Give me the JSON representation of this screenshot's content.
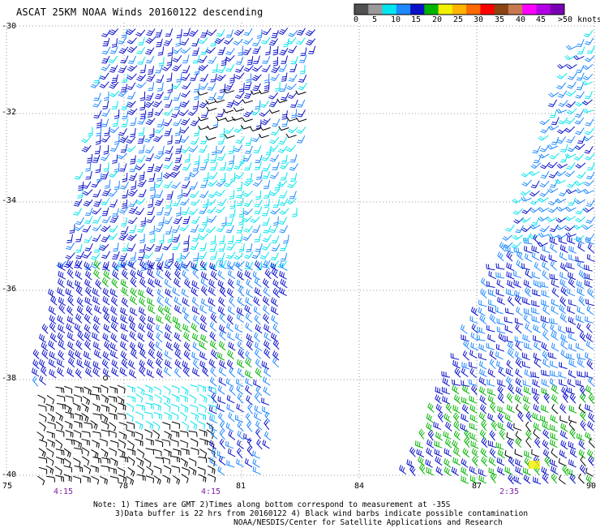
{
  "title": "ASCAT 25KM NOAA Winds 20160122 descending",
  "legend": {
    "colors": [
      "#505050",
      "#9a9a9a",
      "#00e5ee",
      "#1e88ff",
      "#0a10c8",
      "#00b400",
      "#f0f000",
      "#ffb400",
      "#ff6a00",
      "#ff0000",
      "#8b4513",
      "#c87850",
      "#ff00ff",
      "#b400e6",
      "#7a00b4"
    ],
    "labels": [
      "0",
      "5",
      "10",
      "15",
      "20",
      "25",
      "30",
      "35",
      "40",
      "45",
      ">50 knots"
    ]
  },
  "axes": {
    "lat_labels": [
      "-30",
      "-32",
      "-34",
      "-36",
      "-38",
      "-40"
    ],
    "lon_labels": [
      "75",
      "78",
      "81",
      "84",
      "87",
      "90"
    ]
  },
  "times": {
    "labels": [
      "4:15",
      "4:15",
      "2:35"
    ]
  },
  "notes": {
    "line1": "Note: 1) Times are GMT 2)Times along bottom correspond to measurement at -35S",
    "line2": "3)Data buffer is 22 hrs from 20160122 4) Black wind barbs indicate possible contamination",
    "line3": "NOAA/NESDIS/Center for Satellite Applications and Research"
  },
  "wind_palette": {
    "dark_blue": "#0a10c8",
    "blue": "#1e88ff",
    "cyan": "#00e5ee",
    "green": "#00b400",
    "black": "#000000",
    "yellow": "#f0f000"
  }
}
